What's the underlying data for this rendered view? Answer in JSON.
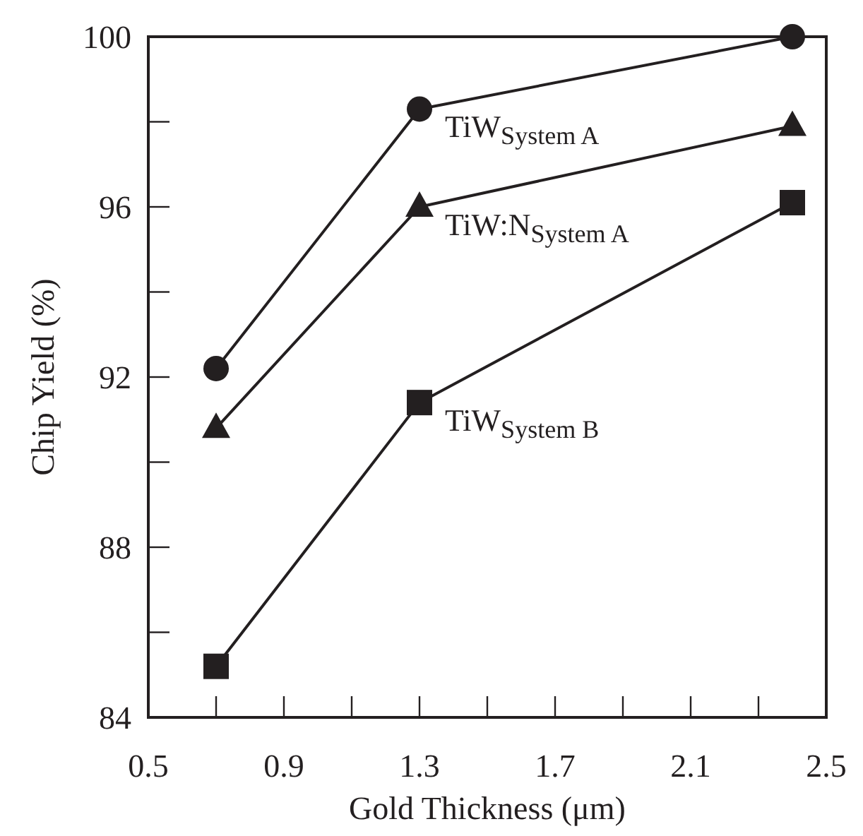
{
  "chart_data": {
    "type": "line",
    "xlabel": "Gold Thickness (μm)",
    "ylabel": "Chip Yield (%)",
    "x": [
      0.7,
      1.3,
      2.4
    ],
    "series": [
      {
        "name": "TiW$_{System A}$",
        "color": "#231f20",
        "marker": "circle",
        "values": [
          92.2,
          98.3,
          100
        ]
      },
      {
        "name": "TiW:N$_{System A}$",
        "color": "#231f20",
        "marker": "triangle",
        "values": [
          90.8,
          96.0,
          97.9
        ]
      },
      {
        "name": "TiW$_{System B}$",
        "color": "#231f20",
        "marker": "square",
        "values": [
          85.2,
          91.4,
          96.1
        ]
      }
    ],
    "xlim": [
      0.5,
      2.5
    ],
    "xticks": [
      0.5,
      {
        "value": 0.7,
        "label": null
      },
      0.9,
      {
        "value": 1.1,
        "label": null
      },
      1.3,
      {
        "value": 1.5,
        "label": null
      },
      1.7,
      {
        "value": 1.9,
        "label": null
      },
      2.1,
      {
        "value": 2.3,
        "label": null
      },
      2.5
    ],
    "ylim": [
      84,
      100
    ],
    "yticks": [
      84,
      {
        "value": 86,
        "label": null
      },
      88,
      {
        "value": 90,
        "label": null
      },
      92,
      {
        "value": 94,
        "label": null
      },
      96,
      {
        "value": 98,
        "label": null
      },
      100
    ],
    "grid": false,
    "line_style": "solid"
  }
}
